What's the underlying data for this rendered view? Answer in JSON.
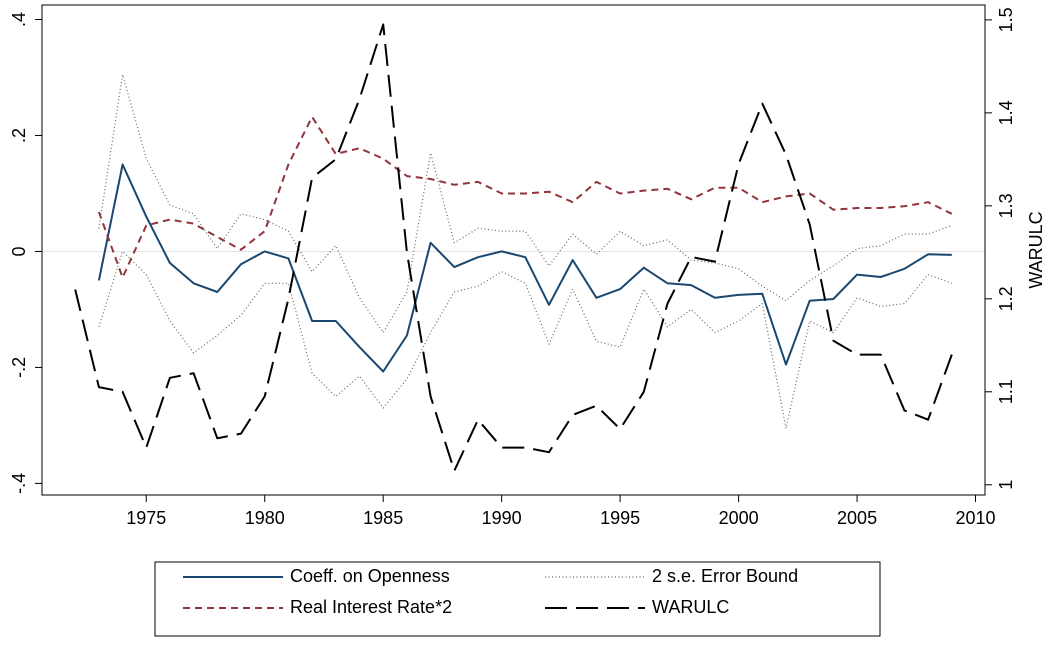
{
  "chart_data": {
    "type": "line",
    "x": [
      1972,
      1973,
      1974,
      1975,
      1976,
      1977,
      1978,
      1979,
      1980,
      1981,
      1982,
      1983,
      1984,
      1985,
      1986,
      1987,
      1988,
      1989,
      1990,
      1991,
      1992,
      1993,
      1994,
      1995,
      1996,
      1997,
      1998,
      1999,
      2000,
      2001,
      2002,
      2003,
      2004,
      2005,
      2006,
      2007,
      2008,
      2009
    ],
    "xlim": [
      1970.6,
      2010.4
    ],
    "xticks": [
      1975,
      1980,
      1985,
      1990,
      1995,
      2000,
      2005,
      2010
    ],
    "ylim": [
      -0.42,
      0.425
    ],
    "yticks": [
      {
        "value": 0.4,
        "label": ".4"
      },
      {
        "value": 0.2,
        "label": ".2"
      },
      0,
      {
        "value": -0.2,
        "label": "-.2"
      },
      {
        "value": -0.4,
        "label": "-.4"
      }
    ],
    "y2lim": [
      0.989,
      1.516
    ],
    "y2ticks": [
      1,
      1.1,
      1.2,
      1.3,
      1.4,
      1.5
    ],
    "y2label": "WARULC",
    "yline": 0,
    "series": [
      {
        "name": "Coeff. on Openness",
        "color": "#1a476f",
        "dash": "none",
        "width": 2,
        "values": [
          null,
          -0.05,
          0.15,
          0.06,
          -0.02,
          -0.055,
          -0.07,
          -0.022,
          0,
          -0.012,
          -0.12,
          -0.12,
          -0.165,
          -0.207,
          -0.145,
          0.015,
          -0.027,
          -0.01,
          0,
          -0.01,
          -0.092,
          -0.015,
          -0.08,
          -0.065,
          -0.028,
          -0.055,
          -0.058,
          -0.08,
          -0.075,
          -0.073,
          -0.195,
          -0.085,
          -0.082,
          -0.04,
          -0.044,
          -0.03,
          -0.005,
          -0.006
        ]
      },
      {
        "name": "2 s.e. Error Bound",
        "color": "#666666",
        "dash": "1,2.5",
        "width": 1.2,
        "upper": [
          null,
          0.04,
          0.305,
          0.16,
          0.08,
          0.065,
          0.005,
          0.065,
          0.055,
          0.035,
          -0.035,
          0.01,
          -0.08,
          -0.14,
          -0.07,
          0.17,
          0.015,
          0.04,
          0.035,
          0.035,
          -0.025,
          0.03,
          -0.005,
          0.035,
          0.01,
          0.02,
          -0.015,
          -0.02,
          -0.03,
          -0.06,
          -0.085,
          -0.05,
          -0.025,
          0.005,
          0.01,
          0.03,
          0.03,
          0.045
        ],
        "lower": [
          null,
          -0.13,
          0,
          -0.04,
          -0.12,
          -0.175,
          -0.145,
          -0.11,
          -0.055,
          -0.055,
          -0.21,
          -0.25,
          -0.215,
          -0.27,
          -0.22,
          -0.14,
          -0.07,
          -0.06,
          -0.035,
          -0.055,
          -0.16,
          -0.065,
          -0.155,
          -0.165,
          -0.065,
          -0.13,
          -0.1,
          -0.14,
          -0.12,
          -0.09,
          -0.305,
          -0.12,
          -0.14,
          -0.08,
          -0.095,
          -0.09,
          -0.04,
          -0.055
        ]
      },
      {
        "name": "Real Interest Rate*2",
        "color": "#90353b",
        "dash": "7,5",
        "width": 2,
        "values": [
          null,
          0.068,
          -0.045,
          0.045,
          0.055,
          0.048,
          0.025,
          0.003,
          0.035,
          0.15,
          0.232,
          0.168,
          0.178,
          0.16,
          0.13,
          0.125,
          0.115,
          0.12,
          0.1,
          0.1,
          0.103,
          0.085,
          0.12,
          0.1,
          0.105,
          0.108,
          0.09,
          0.11,
          0.11,
          0.085,
          0.095,
          0.1,
          0.072,
          0.075,
          0.075,
          0.078,
          0.085,
          0.065
        ]
      },
      {
        "name": "WARULC",
        "color": "#000000",
        "dash": "22,9",
        "width": 2,
        "axis": "y2",
        "values": [
          1.21,
          1.105,
          1.1,
          1.04,
          1.115,
          1.12,
          1.05,
          1.055,
          1.095,
          1.2,
          1.33,
          1.35,
          1.415,
          1.495,
          1.25,
          1.095,
          1.015,
          1.07,
          1.04,
          1.04,
          1.035,
          1.075,
          1.085,
          1.06,
          1.1,
          1.195,
          1.245,
          1.24,
          1.345,
          1.41,
          1.355,
          1.28,
          1.155,
          1.14,
          1.14,
          1.08,
          1.07,
          1.14
        ]
      }
    ]
  }
}
